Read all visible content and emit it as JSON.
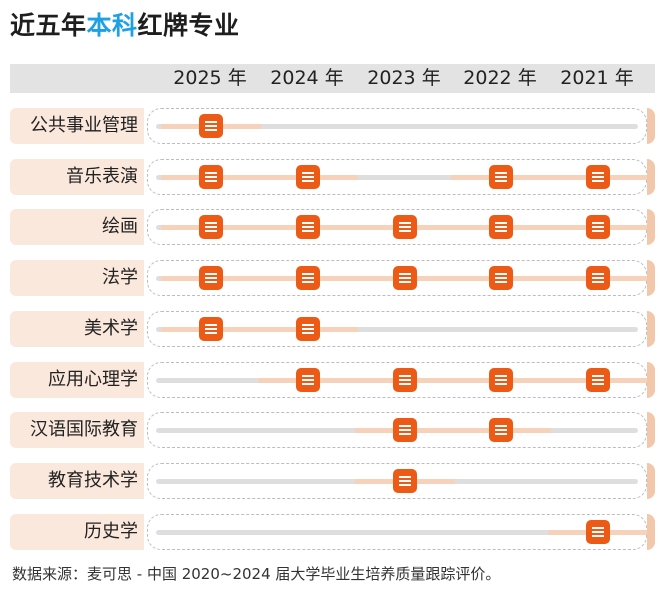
{
  "title_prefix": "近五年",
  "title_highlight": "本科",
  "title_suffix": "红牌专业",
  "colors": {
    "accent_blue": "#1ea0e6",
    "badge_orange": "#ec5a16",
    "label_bg": "#fbe8dc",
    "segment": "#f7d2bb",
    "lane": "#dedede",
    "header_bg": "#e3e3e3"
  },
  "icon": "red-card-icon",
  "chart_data": {
    "type": "table",
    "years": [
      "2025 年",
      "2024 年",
      "2023 年",
      "2022 年",
      "2021 年"
    ],
    "rows": [
      {
        "label": "公共事业管理",
        "flags": [
          1,
          0,
          0,
          0,
          0
        ]
      },
      {
        "label": "音乐表演",
        "flags": [
          1,
          1,
          0,
          1,
          1
        ]
      },
      {
        "label": "绘画",
        "flags": [
          1,
          1,
          1,
          1,
          1
        ]
      },
      {
        "label": "法学",
        "flags": [
          1,
          1,
          1,
          1,
          1
        ]
      },
      {
        "label": "美术学",
        "flags": [
          1,
          1,
          0,
          0,
          0
        ]
      },
      {
        "label": "应用心理学",
        "flags": [
          0,
          1,
          1,
          1,
          1
        ]
      },
      {
        "label": "汉语国际教育",
        "flags": [
          0,
          0,
          1,
          1,
          0
        ]
      },
      {
        "label": "教育技术学",
        "flags": [
          0,
          0,
          1,
          0,
          0
        ]
      },
      {
        "label": "历史学",
        "flags": [
          0,
          0,
          0,
          0,
          1
        ]
      }
    ]
  },
  "footer": "数据来源：麦可思 - 中国 2020~2024 届大学毕业生培养质量跟踪评价。"
}
